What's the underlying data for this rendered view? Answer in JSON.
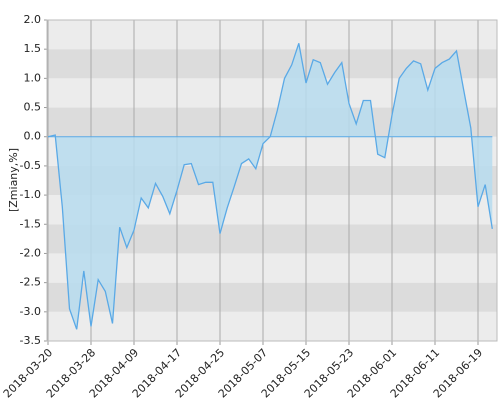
{
  "chart_data": {
    "type": "area",
    "y_label": "[Zmiany,%]",
    "categories": [
      "2018-03-20",
      null,
      null,
      null,
      null,
      null,
      "2018-03-28",
      null,
      null,
      null,
      null,
      null,
      "2018-04-09",
      null,
      null,
      null,
      null,
      null,
      "2018-04-17",
      null,
      null,
      null,
      null,
      null,
      "2018-04-25",
      null,
      null,
      null,
      null,
      null,
      "2018-05-07",
      null,
      null,
      null,
      null,
      null,
      "2018-05-15",
      null,
      null,
      null,
      null,
      null,
      "2018-05-23",
      null,
      null,
      null,
      null,
      null,
      "2018-06-01",
      null,
      null,
      null,
      null,
      null,
      "2018-06-11",
      null,
      null,
      null,
      null,
      null,
      "2018-06-19",
      null,
      null
    ],
    "values": [
      0.0,
      0.03,
      -1.2,
      -2.95,
      -3.3,
      -2.3,
      -3.25,
      -2.45,
      -2.65,
      -3.2,
      -1.55,
      -1.9,
      -1.6,
      -1.05,
      -1.22,
      -0.8,
      -1.02,
      -1.32,
      -0.92,
      -0.48,
      -0.46,
      -0.82,
      -0.78,
      -0.78,
      -1.66,
      -1.22,
      -0.85,
      -0.46,
      -0.38,
      -0.55,
      -0.12,
      0.0,
      0.45,
      1.0,
      1.23,
      1.6,
      0.92,
      1.32,
      1.27,
      0.9,
      1.1,
      1.27,
      0.57,
      0.22,
      0.62,
      0.62,
      -0.3,
      -0.36,
      0.37,
      1.0,
      1.17,
      1.3,
      1.25,
      0.8,
      1.17,
      1.27,
      1.33,
      1.47,
      0.8,
      0.15,
      -1.2,
      -0.82,
      -1.58
    ],
    "color": "#5aa9e6",
    "fill": "#b7dcee",
    "ylim": [
      -3.5,
      2.0
    ],
    "yticks": [
      {
        "value": -3.5,
        "label": "-3.5"
      },
      {
        "value": -3.0,
        "label": "-3.0"
      },
      {
        "value": -2.5,
        "label": "-2.5"
      },
      {
        "value": -2.0,
        "label": "-2.0"
      },
      {
        "value": -1.5,
        "label": "-1.5"
      },
      {
        "value": -1.0,
        "label": "-1.0"
      },
      {
        "value": -0.5,
        "label": "-0.5"
      },
      {
        "value": 0.0,
        "label": "0.0"
      },
      {
        "value": 0.5,
        "label": "0.5"
      },
      {
        "value": 1.0,
        "label": "1.0"
      },
      {
        "value": 1.5,
        "label": "1.5"
      },
      {
        "value": 2.0,
        "label": "2.0"
      }
    ],
    "grid": true
  }
}
